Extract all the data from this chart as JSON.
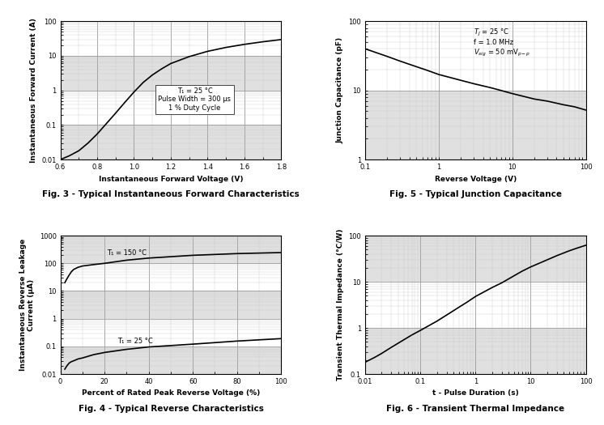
{
  "fig3": {
    "title": "Fig. 3 - Typical Instantaneous Forward Characteristics",
    "xlabel": "Instantaneous Forward Voltage (V)",
    "ylabel": "Instantaneous Forward Current (A)",
    "xlim": [
      0.6,
      1.8
    ],
    "ylim": [
      0.01,
      100
    ],
    "ann_text": "T₁ = 25 °C\nPulse Width = 300 μs\n1 % Duty Cycle",
    "ann_x": 1.33,
    "ann_y": 0.55,
    "curve_x": [
      0.6,
      0.65,
      0.7,
      0.75,
      0.8,
      0.85,
      0.9,
      0.95,
      1.0,
      1.05,
      1.1,
      1.15,
      1.2,
      1.3,
      1.4,
      1.5,
      1.6,
      1.7,
      1.8
    ],
    "curve_y": [
      0.01,
      0.013,
      0.018,
      0.03,
      0.055,
      0.11,
      0.22,
      0.45,
      0.9,
      1.7,
      2.8,
      4.2,
      6.0,
      9.5,
      13.5,
      17.5,
      21.5,
      25.5,
      29.5
    ]
  },
  "fig4": {
    "title": "Fig. 4 - Typical Reverse Characteristics",
    "xlabel": "Percent of Rated Peak Reverse Voltage (%)",
    "ylabel": "Instantaneous Reverse Leakage\nCurrent (μA)",
    "xlim": [
      0,
      100
    ],
    "ylim": [
      0.01,
      1000
    ],
    "ann1_text": "T₁ = 150 °C",
    "ann1_x": 21,
    "ann1_y": 200,
    "ann2_text": "T₁ = 25 °C",
    "ann2_x": 26,
    "ann2_y": 0.13,
    "curve150_x": [
      2,
      3,
      4,
      5,
      6,
      8,
      10,
      15,
      20,
      30,
      40,
      60,
      80,
      100
    ],
    "curve150_y": [
      20.0,
      28.0,
      38.0,
      50.0,
      60.0,
      72.0,
      80.0,
      90.0,
      100.0,
      130.0,
      155.0,
      195.0,
      225.0,
      245.0
    ],
    "curve25_x": [
      2,
      3,
      4,
      5,
      6,
      8,
      10,
      15,
      20,
      30,
      40,
      60,
      80,
      100
    ],
    "curve25_y": [
      0.015,
      0.02,
      0.025,
      0.028,
      0.03,
      0.035,
      0.038,
      0.05,
      0.06,
      0.078,
      0.095,
      0.12,
      0.155,
      0.19
    ]
  },
  "fig5": {
    "title": "Fig. 5 - Typical Junction Capacitance",
    "xlabel": "Reverse Voltage (V)",
    "ylabel": "Junction Capacitance (pF)",
    "xlim": [
      0.1,
      100
    ],
    "ylim": [
      1,
      100
    ],
    "ann_text": "T₁ = 25 °C\nf = 1.0 MHz\nVₛᵢᵔ = 50 mVₚ₋ₚ",
    "ann_x": 3.0,
    "ann_y": 82,
    "curve_x": [
      0.1,
      0.2,
      0.3,
      0.5,
      0.7,
      1.0,
      2.0,
      3.0,
      5.0,
      7.0,
      10.0,
      20.0,
      30.0,
      50.0,
      70.0,
      100.0
    ],
    "curve_y": [
      40.0,
      31.0,
      26.5,
      22.0,
      19.5,
      17.0,
      14.0,
      12.5,
      11.0,
      10.0,
      9.0,
      7.5,
      7.0,
      6.2,
      5.8,
      5.2
    ]
  },
  "fig6": {
    "title": "Fig. 6 - Transient Thermal Impedance",
    "xlabel": "t - Pulse Duration (s)",
    "ylabel": "Transient Thermal Impedance (°C/W)",
    "xlim": [
      0.01,
      100
    ],
    "ylim": [
      0.1,
      100
    ],
    "curve_x": [
      0.01,
      0.015,
      0.02,
      0.03,
      0.05,
      0.07,
      0.1,
      0.2,
      0.3,
      0.5,
      0.7,
      1.0,
      2.0,
      3.0,
      5.0,
      7.0,
      10.0,
      20.0,
      30.0,
      50.0,
      70.0,
      100.0
    ],
    "curve_y": [
      0.18,
      0.23,
      0.28,
      0.38,
      0.55,
      0.7,
      0.88,
      1.4,
      1.9,
      2.8,
      3.6,
      4.8,
      7.5,
      9.5,
      13.5,
      17.0,
      21.0,
      30.0,
      37.0,
      47.0,
      54.0,
      62.0
    ]
  },
  "line_color": "#000000",
  "grid_major_color": "#999999",
  "grid_minor_color": "#cccccc",
  "band_color": "#e0e0e0",
  "plot_bg": "#ffffff",
  "fig_bg": "#ffffff",
  "title_fontsize": 7.5,
  "label_fontsize": 6.5,
  "tick_fontsize": 6,
  "ann_fontsize": 6
}
